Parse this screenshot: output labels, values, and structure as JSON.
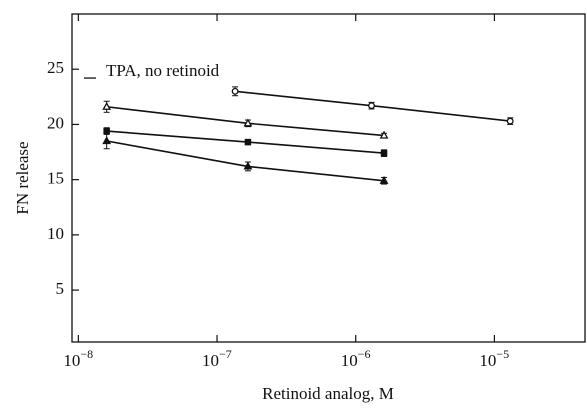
{
  "chart_data": {
    "type": "line",
    "x_label": "Retinoid analog, M",
    "y_label": "FN release",
    "log_x": true,
    "xlim": [
      9e-09,
      4.5e-05
    ],
    "xticks": [
      {
        "value": 1e-08,
        "label": "10",
        "exponent": "−8"
      },
      {
        "value": 1e-07,
        "label": "10",
        "exponent": "−7"
      },
      {
        "value": 1e-06,
        "label": "10",
        "exponent": "−6"
      },
      {
        "value": 1e-05,
        "label": "10",
        "exponent": "−5"
      }
    ],
    "ylim": [
      0.3,
      30
    ],
    "yticks": [
      5,
      10,
      15,
      20,
      25
    ],
    "reference": {
      "label": "TPA, no retinoid",
      "value": 24.2
    },
    "series": [
      {
        "marker": "circle",
        "color": "#111111",
        "x": [
          1.35e-07,
          1.3e-06,
          1.3e-05
        ],
        "values": [
          23.0,
          21.7,
          20.3
        ],
        "errors": [
          0.4,
          0.3,
          0.3
        ]
      },
      {
        "marker": "triangle-open",
        "color": "#111111",
        "x": [
          1.6e-08,
          1.67e-07,
          1.6e-06
        ],
        "values": [
          21.6,
          20.1,
          19.0
        ],
        "errors": [
          0.5,
          0.3,
          0.2
        ]
      },
      {
        "marker": "square",
        "color": "#111111",
        "x": [
          1.6e-08,
          1.67e-07,
          1.6e-06
        ],
        "values": [
          19.4,
          18.4,
          17.4
        ],
        "errors": [
          0.3,
          0.2,
          0.3
        ]
      },
      {
        "marker": "triangle",
        "color": "#111111",
        "x": [
          1.6e-08,
          1.67e-07,
          1.6e-06
        ],
        "values": [
          18.5,
          16.2,
          14.9
        ],
        "errors": [
          0.7,
          0.4,
          0.3
        ]
      }
    ]
  }
}
